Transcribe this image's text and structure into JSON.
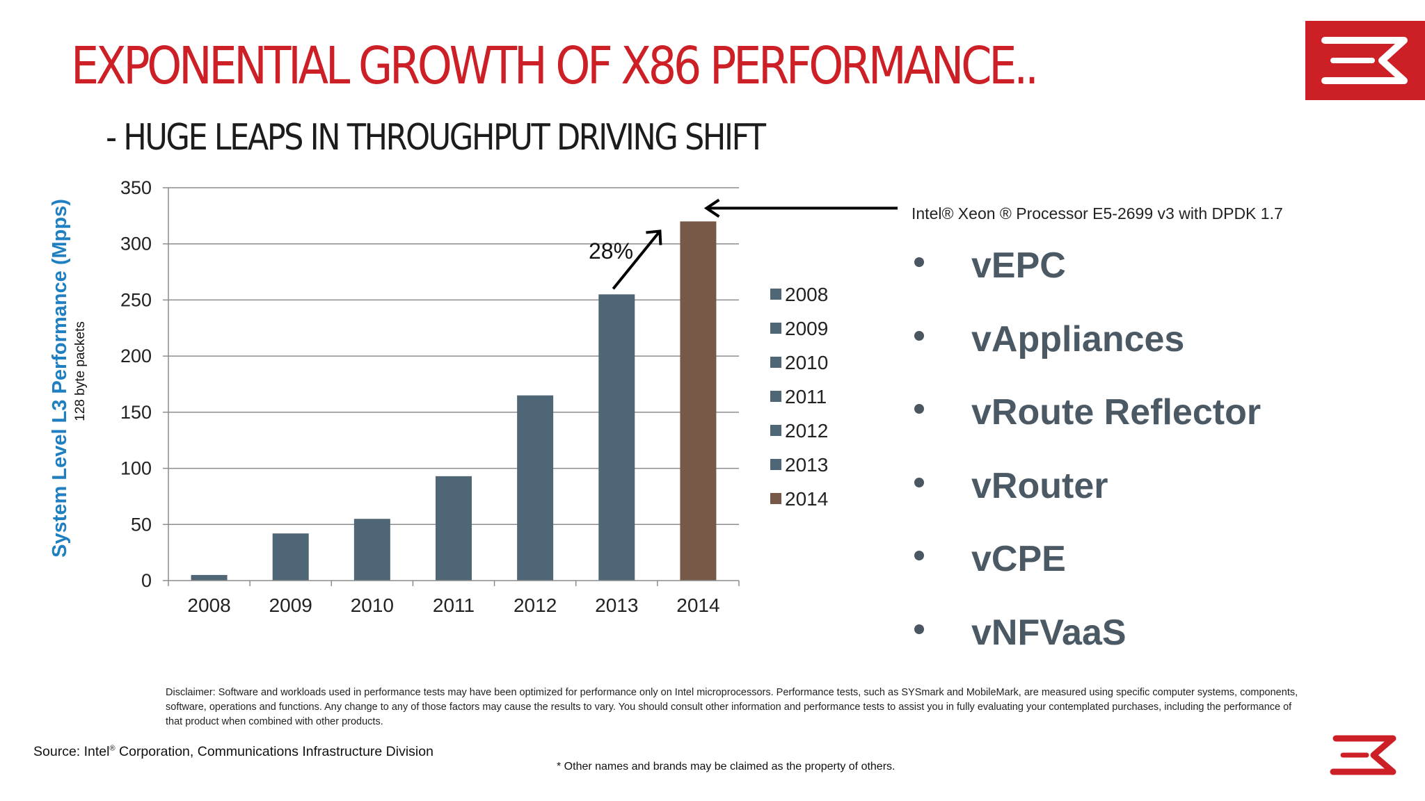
{
  "slide": {
    "title": "EXPONENTIAL GROWTH OF X86 PERFORMANCE..",
    "subtitle": "- HUGE LEAPS IN THROUGHPUT DRIVING SHIFT",
    "accent_color": "#cc1f26"
  },
  "chart_data": {
    "type": "bar",
    "categories": [
      "2008",
      "2009",
      "2010",
      "2011",
      "2012",
      "2013",
      "2014"
    ],
    "values": [
      5,
      42,
      55,
      93,
      165,
      255,
      320
    ],
    "ylabel": "System Level L3 Performance (Mpps)",
    "ylabel_sub": "128 byte packets",
    "xlabel": "",
    "ylim": [
      0,
      350
    ],
    "yticks": [
      "0",
      "50",
      "100",
      "150",
      "200",
      "250",
      "300",
      "350"
    ],
    "ytick_values": [
      0,
      50,
      100,
      150,
      200,
      250,
      300,
      350
    ],
    "grid": true,
    "legend": [
      "2008",
      "2009",
      "2010",
      "2011",
      "2012",
      "2013",
      "2014"
    ],
    "legend_placement": "right",
    "colors": [
      "#4f6677",
      "#4f6677",
      "#4f6677",
      "#4f6677",
      "#4f6677",
      "#4f6677",
      "#765a47"
    ],
    "annotation_pct": "28%",
    "annotation_note": "Intel® Xeon ® Processor E5-2699 v3 with DPDK 1.7"
  },
  "use_cases": [
    "vEPC",
    "vAppliances",
    "vRoute Reflector",
    "vRouter",
    "vCPE",
    "vNFVaaS"
  ],
  "footer": {
    "disclaimer": "Disclaimer: Software and workloads used in performance tests may have been optimized for performance only on Intel microprocessors. Performance tests, such as SYSmark and MobileMark, are measured using specific computer systems, components, software, operations and functions. Any change to any of those factors may cause the results to vary. You should consult other information and performance tests to assist you in fully evaluating your contemplated purchases, including the performance of that product when combined with other products.",
    "source_prefix": "Source: Intel",
    "source_reg": "®",
    "source_suffix": " Corporation, Communications Infrastructure Division",
    "brands_note": "* Other names and brands may be claimed as the property of others."
  }
}
